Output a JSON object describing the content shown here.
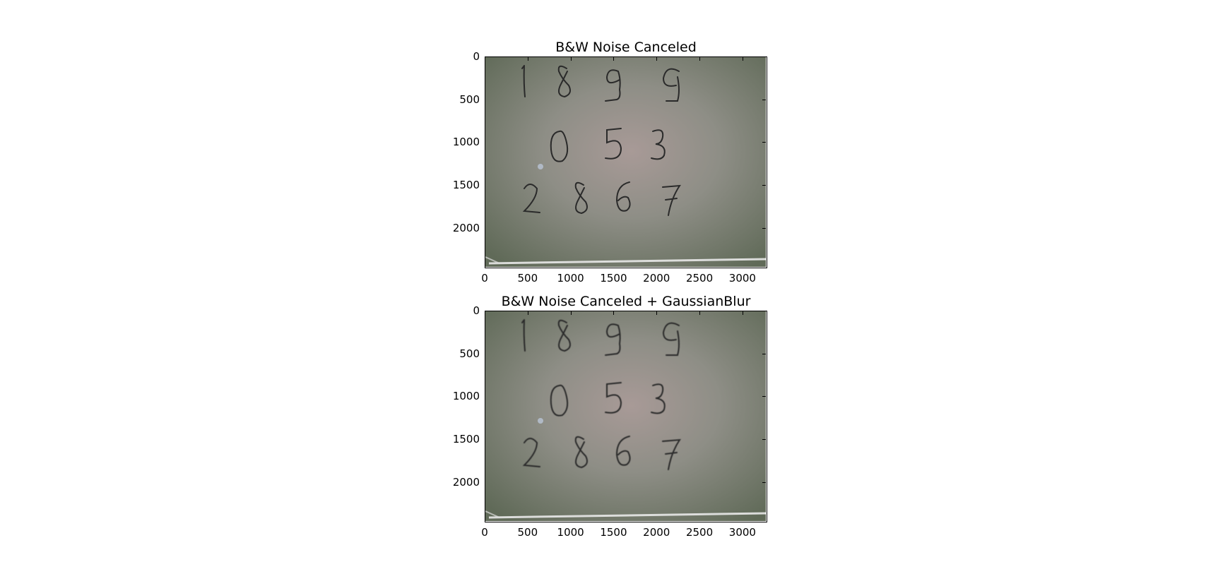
{
  "figure": {
    "panels": [
      {
        "title": "B&W Noise Canceled",
        "yticks": [
          "0",
          "500",
          "1000",
          "1500",
          "2000"
        ],
        "xticks": [
          "0",
          "500",
          "1000",
          "1500",
          "2000",
          "2500",
          "3000"
        ],
        "xlim": [
          0,
          3264
        ],
        "ylim": [
          2448,
          0
        ]
      },
      {
        "title": "B&W Noise Canceled + GaussianBlur",
        "yticks": [
          "0",
          "500",
          "1000",
          "1500",
          "2000"
        ],
        "xticks": [
          "0",
          "500",
          "1000",
          "1500",
          "2000",
          "2500",
          "3000"
        ],
        "xlim": [
          0,
          3264
        ],
        "ylim": [
          2448,
          0
        ]
      }
    ],
    "digit_rows": [
      [
        "1",
        "8",
        "9",
        "9"
      ],
      [
        "0",
        "5",
        "3"
      ],
      [
        "2",
        "8",
        "6",
        "7"
      ]
    ],
    "colors": {
      "board_edge": "#5f6856",
      "board_center": "#a69a96",
      "ink": "#2a2a2a"
    }
  }
}
